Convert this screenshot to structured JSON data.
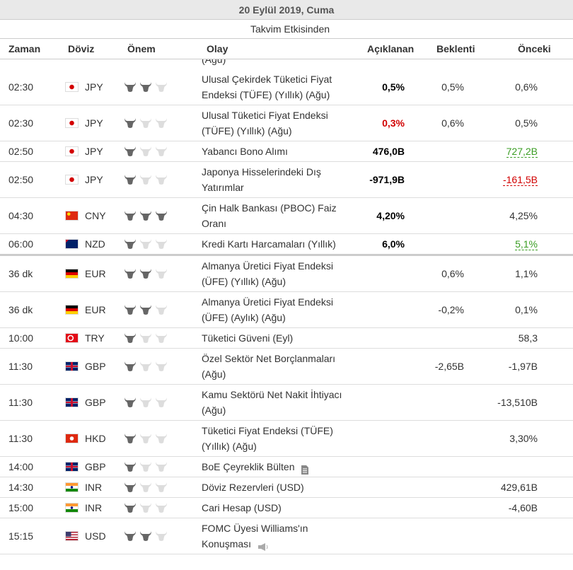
{
  "header": {
    "date": "20 Eylül 2019, Cuma",
    "subtitle": "Takvim Etkisinden"
  },
  "columns": {
    "time": "Zaman",
    "currency": "Döviz",
    "importance": "Önem",
    "event": "Olay",
    "actual": "Açıklanan",
    "forecast": "Beklenti",
    "previous": "Önceki"
  },
  "partial_row": "(Ağu)",
  "rows": [
    {
      "time": "02:30",
      "flag": "jp",
      "currency": "JPY",
      "importance": 2,
      "event": "Ulusal Çekirdek Tüketici Fiyat Endeksi (TÜFE) (Yıllık) (Ağu)",
      "actual": "0,5%",
      "forecast": "0,5%",
      "previous": "0,6%"
    },
    {
      "time": "02:30",
      "flag": "jp",
      "currency": "JPY",
      "importance": 1,
      "event": "Ulusal Tüketici Fiyat Endeksi (TÜFE) (Yıllık) (Ağu)",
      "actual": "0,3%",
      "actual_trend": "down",
      "forecast": "0,6%",
      "previous": "0,5%"
    },
    {
      "time": "02:50",
      "flag": "jp",
      "currency": "JPY",
      "importance": 1,
      "event": "Yabancı Bono Alımı",
      "actual": "476,0B",
      "forecast": "",
      "previous": "727,2B",
      "previous_trend": "up"
    },
    {
      "time": "02:50",
      "flag": "jp",
      "currency": "JPY",
      "importance": 1,
      "event": "Japonya Hisselerindeki Dış Yatırımlar",
      "actual": "-971,9B",
      "forecast": "",
      "previous": "-161,5B",
      "previous_trend": "down"
    },
    {
      "time": "04:30",
      "flag": "cn",
      "currency": "CNY",
      "importance": 3,
      "event": "Çin Halk Bankası (PBOC) Faiz Oranı",
      "actual": "4,20%",
      "forecast": "",
      "previous": "4,25%"
    },
    {
      "time": "06:00",
      "flag": "nz",
      "currency": "NZD",
      "importance": 1,
      "event": "Kredi Kartı Harcamaları (Yıllık)",
      "actual": "6,0%",
      "forecast": "",
      "previous": "5,1%",
      "previous_trend": "up",
      "separator_after": true
    },
    {
      "time": "36 dk",
      "flag": "de",
      "currency": "EUR",
      "importance": 2,
      "event": "Almanya Üretici Fiyat Endeksi (ÜFE) (Yıllık) (Ağu)",
      "actual": "",
      "forecast": "0,6%",
      "previous": "1,1%"
    },
    {
      "time": "36 dk",
      "flag": "de",
      "currency": "EUR",
      "importance": 2,
      "event": "Almanya Üretici Fiyat Endeksi (ÜFE) (Aylık) (Ağu)",
      "actual": "",
      "forecast": "-0,2%",
      "previous": "0,1%"
    },
    {
      "time": "10:00",
      "flag": "tr",
      "currency": "TRY",
      "importance": 1,
      "event": "Tüketici Güveni (Eyl)",
      "actual": "",
      "forecast": "",
      "previous": "58,3"
    },
    {
      "time": "11:30",
      "flag": "gb",
      "currency": "GBP",
      "importance": 1,
      "event": "Özel Sektör Net Borçlanmaları (Ağu)",
      "actual": "",
      "forecast": "-2,65B",
      "previous": "-1,97B"
    },
    {
      "time": "11:30",
      "flag": "gb",
      "currency": "GBP",
      "importance": 1,
      "event": "Kamu Sektörü Net Nakit İhtiyacı (Ağu)",
      "actual": "",
      "forecast": "",
      "previous": "-13,510B"
    },
    {
      "time": "11:30",
      "flag": "hk",
      "currency": "HKD",
      "importance": 1,
      "event": "Tüketici Fiyat Endeksi (TÜFE) (Yıllık) (Ağu)",
      "actual": "",
      "forecast": "",
      "previous": "3,30%"
    },
    {
      "time": "14:00",
      "flag": "gb",
      "currency": "GBP",
      "importance": 1,
      "event": "BoE Çeyreklik Bülten",
      "icon": "doc",
      "actual": "",
      "forecast": "",
      "previous": ""
    },
    {
      "time": "14:30",
      "flag": "in",
      "currency": "INR",
      "importance": 1,
      "event": "Döviz Rezervleri (USD)",
      "actual": "",
      "forecast": "",
      "previous": "429,61B"
    },
    {
      "time": "15:00",
      "flag": "in",
      "currency": "INR",
      "importance": 1,
      "event": "Cari Hesap (USD)",
      "actual": "",
      "forecast": "",
      "previous": "-4,60B"
    },
    {
      "time": "15:15",
      "flag": "us",
      "currency": "USD",
      "importance": 2,
      "event": "FOMC Üyesi Williams'ın Konuşması",
      "icon": "speaker",
      "actual": "",
      "forecast": "",
      "previous": ""
    }
  ]
}
